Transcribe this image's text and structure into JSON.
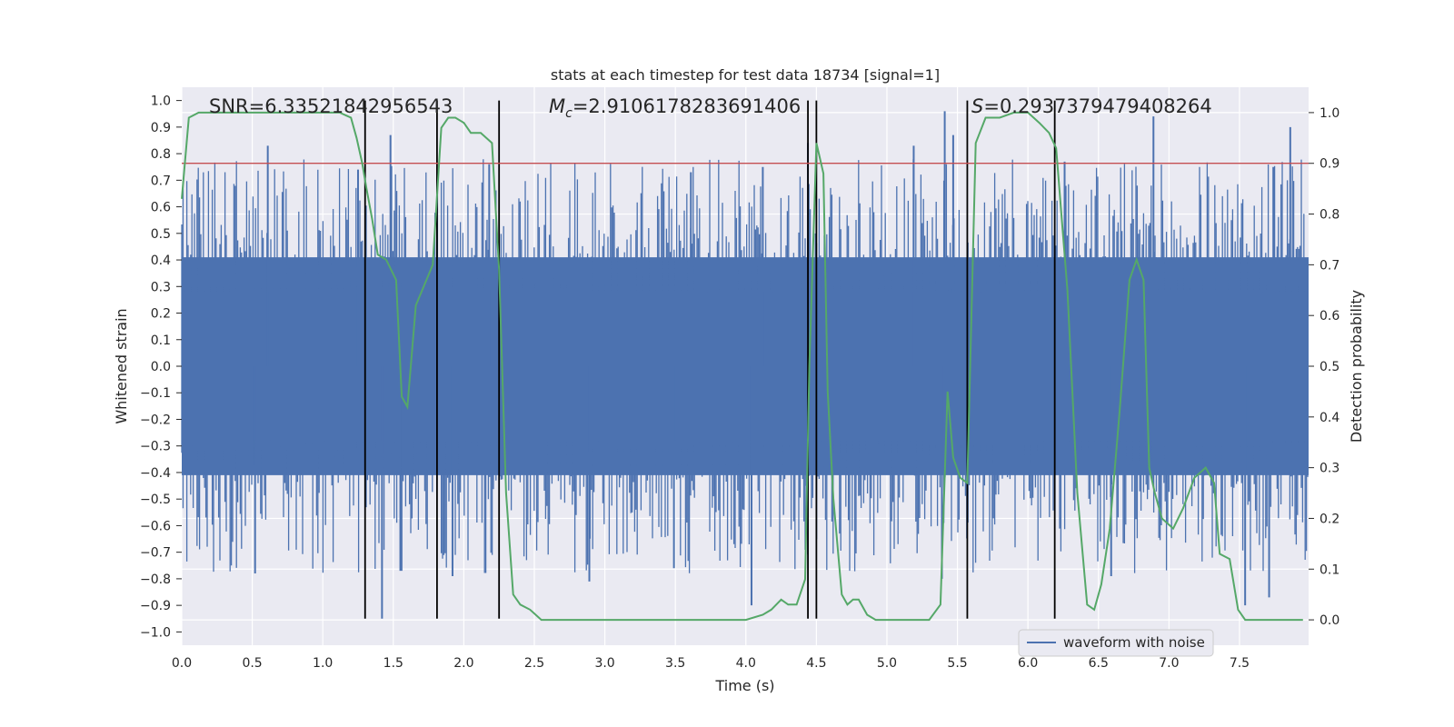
{
  "chart_data": {
    "type": "line",
    "title": "stats at each timestep for test data 18734 [signal=1]",
    "xlabel": "Time (s)",
    "ylabel_left": "Whitened strain",
    "ylabel_right": "Detection probability",
    "xlim": [
      0.0,
      7.99
    ],
    "ylim_left": [
      -1.05,
      1.05
    ],
    "ylim_right": [
      -0.05,
      1.05
    ],
    "x_ticks": [
      "0.0",
      "0.5",
      "1.0",
      "1.5",
      "2.0",
      "2.5",
      "3.0",
      "3.5",
      "4.0",
      "4.5",
      "5.0",
      "5.5",
      "6.0",
      "6.5",
      "7.0",
      "7.5"
    ],
    "y_ticks_left": [
      "1.0",
      "0.9",
      "0.8",
      "0.7",
      "0.6",
      "0.5",
      "0.4",
      "0.3",
      "0.2",
      "0.1",
      "0.0",
      "−0.1",
      "−0.2",
      "−0.3",
      "−0.4",
      "−0.5",
      "−0.6",
      "−0.7",
      "−0.8",
      "−0.9",
      "−1.0"
    ],
    "y_ticks_right": [
      "1.0",
      "0.9",
      "0.8",
      "0.7",
      "0.6",
      "0.5",
      "0.4",
      "0.3",
      "0.2",
      "0.1",
      "0.0"
    ],
    "annotations": {
      "snr": "SNR=6.33521842956543",
      "mc_symbol": "M",
      "mc_sub": "c",
      "mc_value": "=2.9106178283691406",
      "s_symbol": "S",
      "s_value": "=0.2937379479408264"
    },
    "legend": {
      "label": "waveform with noise",
      "position": "lower-right"
    },
    "threshold": {
      "axis": "right",
      "value": 0.9,
      "color": "#c44e52"
    },
    "vertical_lines": {
      "x": [
        1.3,
        1.81,
        2.25,
        4.44,
        4.5,
        5.57,
        6.19
      ],
      "from_left_y": -0.95,
      "to_left_y": 1.0,
      "color": "#000000"
    },
    "series": [
      {
        "name": "waveform with noise",
        "axis": "left",
        "color": "#4c72b0",
        "kind": "noise",
        "envelope_core": 0.41,
        "spikes_up": [
          {
            "x": 0.61,
            "y": 0.83
          },
          {
            "x": 1.48,
            "y": 0.87
          },
          {
            "x": 4.44,
            "y": 0.84
          },
          {
            "x": 5.19,
            "y": 0.83
          },
          {
            "x": 5.41,
            "y": 0.96
          },
          {
            "x": 5.47,
            "y": 0.87
          },
          {
            "x": 6.89,
            "y": 0.94
          },
          {
            "x": 7.86,
            "y": 0.9
          },
          {
            "x": 1.25,
            "y": 0.74
          },
          {
            "x": 2.18,
            "y": 0.76
          },
          {
            "x": 3.61,
            "y": 0.73
          },
          {
            "x": 4.12,
            "y": 0.75
          },
          {
            "x": 6.26,
            "y": 0.77
          },
          {
            "x": 7.74,
            "y": 0.75
          }
        ],
        "spikes_down": [
          {
            "x": 1.42,
            "y": -0.95
          },
          {
            "x": 4.04,
            "y": -0.9
          },
          {
            "x": 7.54,
            "y": -0.9
          },
          {
            "x": 7.71,
            "y": -0.87
          },
          {
            "x": 1.92,
            "y": -0.79
          },
          {
            "x": 2.89,
            "y": -0.81
          },
          {
            "x": 0.52,
            "y": -0.78
          },
          {
            "x": 3.49,
            "y": -0.76
          },
          {
            "x": 5.39,
            "y": -0.8
          },
          {
            "x": 6.59,
            "y": -0.79
          },
          {
            "x": 1.55,
            "y": -0.77
          }
        ]
      },
      {
        "name": "detection probability",
        "axis": "right",
        "color": "#55a868",
        "x": [
          0.0,
          0.05,
          0.12,
          0.2,
          0.3,
          0.45,
          0.6,
          0.8,
          1.0,
          1.12,
          1.2,
          1.24,
          1.28,
          1.31,
          1.35,
          1.39,
          1.45,
          1.52,
          1.56,
          1.6,
          1.66,
          1.72,
          1.78,
          1.84,
          1.89,
          1.94,
          2.0,
          2.05,
          2.12,
          2.2,
          2.25,
          2.3,
          2.35,
          2.4,
          2.47,
          2.55,
          2.65,
          2.8,
          3.0,
          3.2,
          3.5,
          3.8,
          4.0,
          4.12,
          4.18,
          4.25,
          4.3,
          4.36,
          4.42,
          4.45,
          4.5,
          4.55,
          4.58,
          4.62,
          4.68,
          4.72,
          4.76,
          4.8,
          4.86,
          4.92,
          5.05,
          5.15,
          5.25,
          5.3,
          5.38,
          5.43,
          5.47,
          5.52,
          5.57,
          5.63,
          5.7,
          5.8,
          5.9,
          6.0,
          6.08,
          6.15,
          6.2,
          6.28,
          6.35,
          6.42,
          6.47,
          6.52,
          6.58,
          6.65,
          6.72,
          6.77,
          6.82,
          6.86,
          6.9,
          6.95,
          7.03,
          7.1,
          7.18,
          7.26,
          7.32,
          7.36,
          7.43,
          7.49,
          7.54,
          7.62,
          7.72,
          7.82,
          7.95
        ],
        "values": [
          0.83,
          0.99,
          1.0,
          1.0,
          1.0,
          1.0,
          1.0,
          1.0,
          1.0,
          1.0,
          0.99,
          0.95,
          0.9,
          0.85,
          0.79,
          0.72,
          0.71,
          0.67,
          0.44,
          0.42,
          0.62,
          0.66,
          0.7,
          0.97,
          0.99,
          0.99,
          0.98,
          0.96,
          0.96,
          0.94,
          0.69,
          0.25,
          0.05,
          0.03,
          0.02,
          0.0,
          0.0,
          0.0,
          0.0,
          0.0,
          0.0,
          0.0,
          0.0,
          0.01,
          0.02,
          0.04,
          0.03,
          0.03,
          0.08,
          0.5,
          0.94,
          0.88,
          0.45,
          0.24,
          0.05,
          0.03,
          0.04,
          0.04,
          0.01,
          0.0,
          0.0,
          0.0,
          0.0,
          0.0,
          0.03,
          0.45,
          0.32,
          0.28,
          0.27,
          0.94,
          0.99,
          0.99,
          1.0,
          1.0,
          0.98,
          0.96,
          0.93,
          0.65,
          0.25,
          0.03,
          0.02,
          0.07,
          0.18,
          0.41,
          0.67,
          0.71,
          0.67,
          0.3,
          0.25,
          0.2,
          0.18,
          0.22,
          0.28,
          0.3,
          0.27,
          0.13,
          0.12,
          0.02,
          0.0,
          0.0,
          0.0,
          0.0,
          0.0
        ]
      }
    ]
  }
}
